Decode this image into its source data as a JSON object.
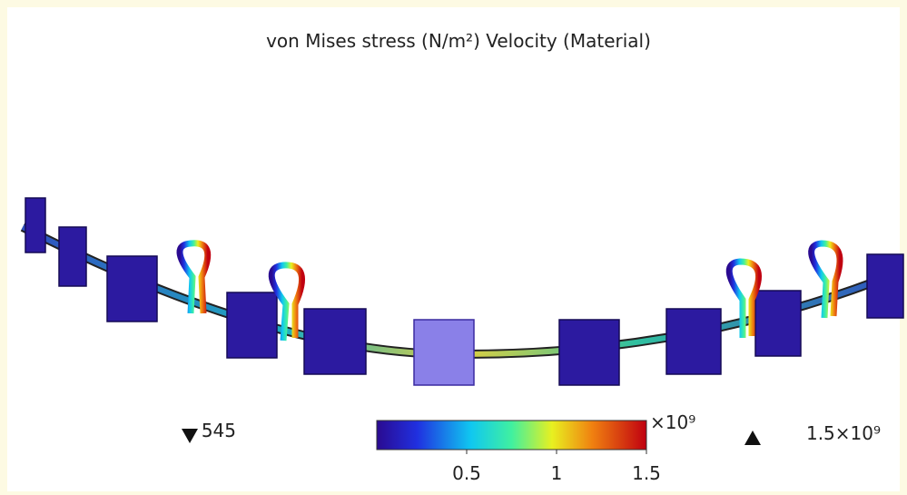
{
  "title": "von Mises stress (N/m²)  Velocity (Material)",
  "colorbar": {
    "min_label": "545",
    "max_label": "1.5×10⁹",
    "multiplier": "×10⁹",
    "lim": [
      0,
      1.5
    ],
    "ticks": [
      0.5,
      1,
      1.5
    ]
  }
}
